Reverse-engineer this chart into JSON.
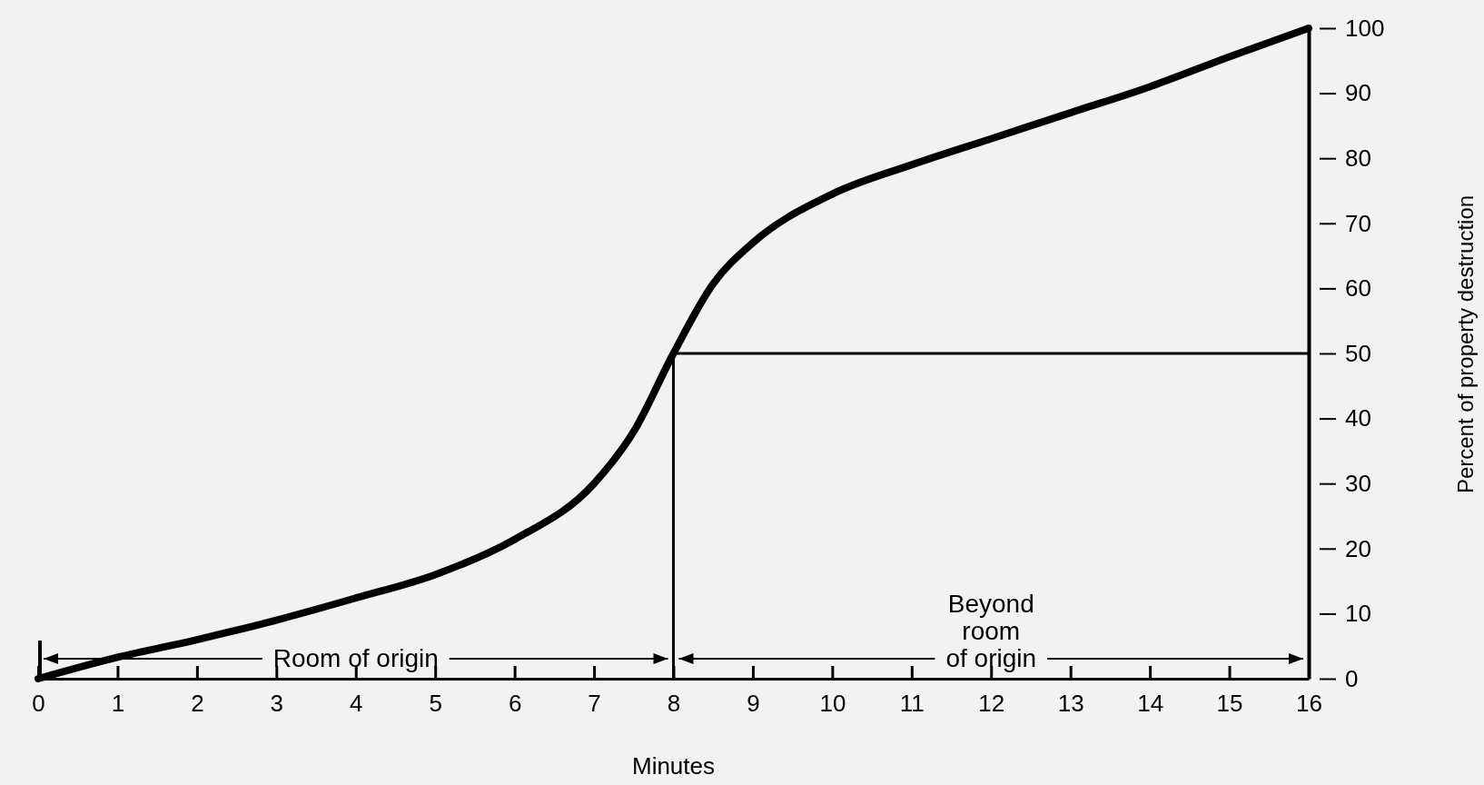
{
  "chart_data": {
    "type": "line",
    "xlabel": "Minutes",
    "ylabel": "Percent of property destruction",
    "x": [
      0,
      1,
      2,
      3,
      4,
      5,
      6,
      7,
      7.5,
      8,
      8.5,
      9,
      10,
      11,
      12,
      13,
      14,
      15,
      16
    ],
    "series": [
      {
        "color": "#000000",
        "values": [
          0,
          3.3,
          6,
          9,
          12.4,
          16,
          21.4,
          30,
          38,
          50,
          60.7,
          67,
          74.5,
          79,
          83,
          87,
          91,
          95.6,
          100
        ]
      }
    ],
    "xlim": [
      0,
      16
    ],
    "xticks": [
      0,
      1,
      2,
      3,
      4,
      5,
      6,
      7,
      8,
      9,
      10,
      11,
      12,
      13,
      14,
      15,
      16
    ],
    "ylim": [
      0,
      100
    ],
    "yticks": [
      0,
      10,
      20,
      30,
      40,
      50,
      60,
      70,
      80,
      90,
      100
    ],
    "ref_lines": [
      {
        "axis": "x",
        "value": 8,
        "color": "#000000"
      },
      {
        "axis": "y",
        "value": 50,
        "color": "#000000"
      }
    ],
    "annotations": [
      "Room of origin",
      "Beyond room of origin"
    ],
    "grid": false,
    "marker": "none",
    "line_style": "solid"
  }
}
